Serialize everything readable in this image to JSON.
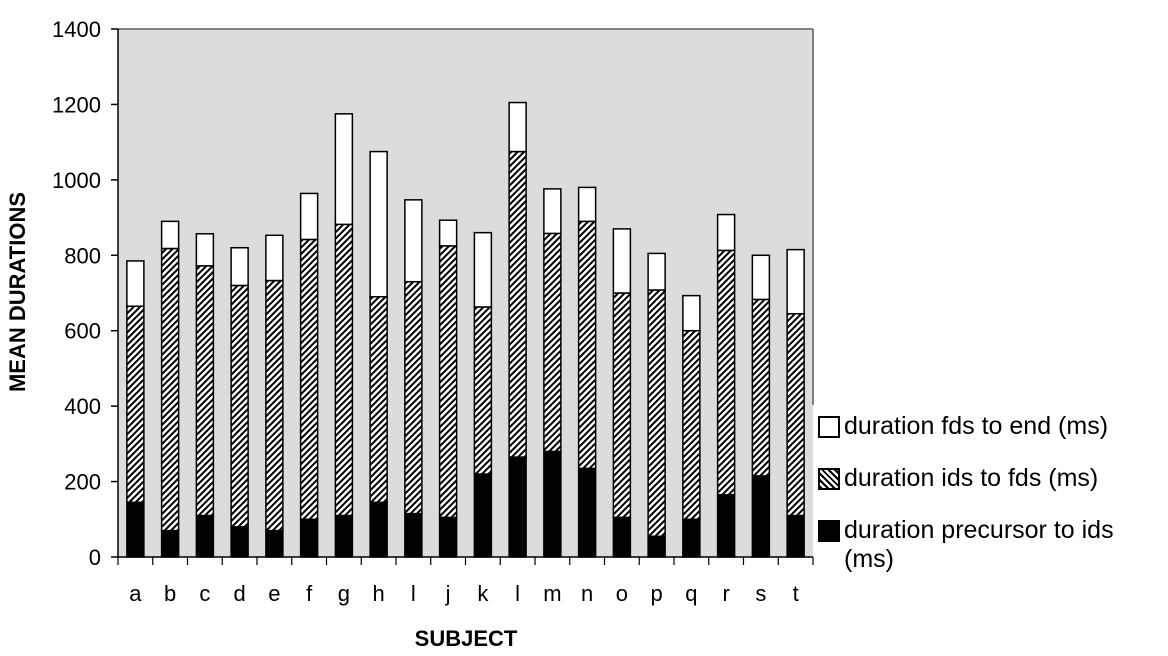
{
  "chart_data": {
    "type": "bar",
    "stacked": true,
    "xlabel": "SUBJECT",
    "ylabel": "MEAN DURATIONS",
    "ylim": [
      0,
      1400
    ],
    "yticks": [
      0,
      200,
      400,
      600,
      800,
      1000,
      1200,
      1400
    ],
    "grid": false,
    "legend_position": "right",
    "categories": [
      "a",
      "b",
      "c",
      "d",
      "e",
      "f",
      "g",
      "h",
      "l",
      "j",
      "k",
      "l",
      "m",
      "n",
      "o",
      "p",
      "q",
      "r",
      "s",
      "t"
    ],
    "series": [
      {
        "name": "duration precursor to ids (ms)",
        "pattern": "solid-black",
        "values": [
          145,
          70,
          110,
          80,
          70,
          100,
          110,
          145,
          115,
          105,
          220,
          265,
          280,
          235,
          105,
          55,
          100,
          165,
          215,
          110
        ]
      },
      {
        "name": "duration ids to fds (ms)",
        "pattern": "diagonal-hatch",
        "values": [
          520,
          748,
          662,
          640,
          663,
          742,
          772,
          545,
          615,
          720,
          443,
          810,
          578,
          655,
          595,
          653,
          500,
          648,
          468,
          535
        ]
      },
      {
        "name": "duration fds to end (ms)",
        "pattern": "white",
        "values": [
          120,
          72,
          85,
          100,
          120,
          122,
          293,
          385,
          217,
          68,
          197,
          130,
          118,
          90,
          170,
          97,
          93,
          95,
          117,
          170
        ]
      }
    ]
  },
  "colors": {
    "plot_background": "#dcdcdc",
    "bar_solid": "#000000",
    "bar_empty": "#ffffff",
    "axis": "#808080"
  },
  "legend": {
    "items": [
      {
        "label": "duration fds to end (ms)",
        "swatch": "white"
      },
      {
        "label": "duration ids to fds (ms)",
        "swatch": "hatch"
      },
      {
        "label": "duration precursor to ids (ms)",
        "swatch": "black"
      }
    ]
  }
}
